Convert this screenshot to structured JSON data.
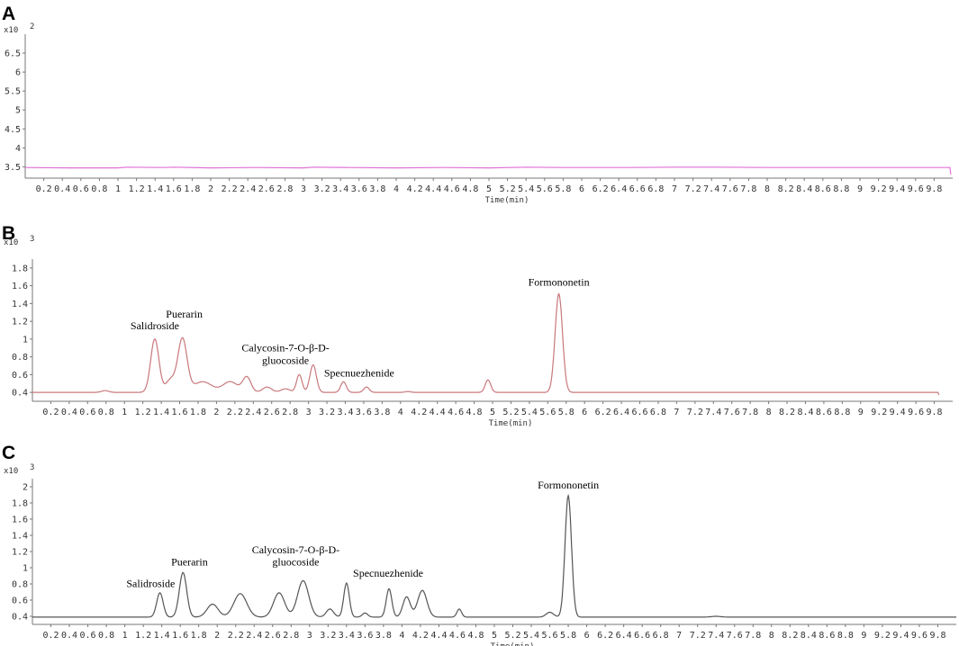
{
  "figure": {
    "panels": [
      "A",
      "B",
      "C"
    ]
  },
  "chart_data": [
    {
      "type": "line",
      "panel": "A",
      "scale_label": "x10",
      "scale_exponent": "2",
      "xlabel": "Time(min)",
      "ylabel": "",
      "xlim": [
        0,
        10
      ],
      "ylim": [
        3.2,
        7.0
      ],
      "yticks": [
        3.5,
        4,
        4.5,
        5,
        5.5,
        6,
        6.5
      ],
      "ytick_labels": [
        "3.5",
        "4",
        "4.5",
        "5",
        "5.5",
        "6",
        "6.5"
      ],
      "color": "#e070d8",
      "series": [
        {
          "x": [
            0.0,
            0.5,
            1.0,
            1.1,
            1.5,
            1.6,
            2.0,
            2.5,
            3.0,
            3.1,
            3.5,
            4.0,
            4.5,
            5.0,
            5.4,
            5.8,
            6.5,
            7.0,
            7.5,
            8.0,
            8.5,
            9.0,
            9.5,
            9.97,
            9.98
          ],
          "y": [
            3.48,
            3.47,
            3.47,
            3.49,
            3.48,
            3.49,
            3.47,
            3.48,
            3.47,
            3.49,
            3.48,
            3.47,
            3.48,
            3.47,
            3.49,
            3.48,
            3.48,
            3.49,
            3.49,
            3.48,
            3.48,
            3.48,
            3.48,
            3.48,
            3.3
          ]
        }
      ],
      "annotations": []
    },
    {
      "type": "line",
      "panel": "B",
      "scale_label": "x10",
      "scale_exponent": "3",
      "xlabel": "Time(min)",
      "ylabel": "",
      "xlim": [
        0,
        10
      ],
      "ylim": [
        0.3,
        1.9
      ],
      "yticks": [
        0.4,
        0.6,
        0.8,
        1.0,
        1.2,
        1.4,
        1.6,
        1.8
      ],
      "ytick_labels": [
        "0.4",
        "0.6",
        "0.8",
        "1",
        "1.2",
        "1.4",
        "1.6",
        "1.8"
      ],
      "color": "#c9787c",
      "baseline": 0.4,
      "peaks": [
        {
          "t": 0.79,
          "h": 0.02,
          "w": 0.04
        },
        {
          "t": 1.33,
          "h": 0.6,
          "w": 0.045
        },
        {
          "t": 1.5,
          "h": 0.14,
          "w": 0.05
        },
        {
          "t": 1.63,
          "h": 0.6,
          "w": 0.05
        },
        {
          "t": 1.85,
          "h": 0.12,
          "w": 0.1
        },
        {
          "t": 2.15,
          "h": 0.12,
          "w": 0.08
        },
        {
          "t": 2.33,
          "h": 0.17,
          "w": 0.045
        },
        {
          "t": 2.55,
          "h": 0.06,
          "w": 0.05
        },
        {
          "t": 2.75,
          "h": 0.04,
          "w": 0.05
        },
        {
          "t": 2.9,
          "h": 0.2,
          "w": 0.03
        },
        {
          "t": 3.05,
          "h": 0.31,
          "w": 0.035
        },
        {
          "t": 3.38,
          "h": 0.12,
          "w": 0.03
        },
        {
          "t": 3.63,
          "h": 0.06,
          "w": 0.03
        },
        {
          "t": 4.08,
          "h": 0.01,
          "w": 0.03
        },
        {
          "t": 4.95,
          "h": 0.14,
          "w": 0.03
        },
        {
          "t": 5.72,
          "h": 1.11,
          "w": 0.04
        }
      ],
      "end_dip": {
        "t": 9.84,
        "y": 0.37
      },
      "annotations": [
        {
          "text": "Salidroside",
          "x": 1.33,
          "y": 1.11
        },
        {
          "text": "Puerarin",
          "x": 1.65,
          "y": 1.24
        },
        {
          "text": "Calycosin-7-O-β-D-",
          "x": 2.75,
          "y": 0.86
        },
        {
          "text": "gluocoside",
          "x": 2.75,
          "y": 0.72
        },
        {
          "text": "Specnuezhenide",
          "x": 3.55,
          "y": 0.58
        },
        {
          "text": "Formononetin",
          "x": 5.72,
          "y": 1.6
        }
      ]
    },
    {
      "type": "line",
      "panel": "C",
      "scale_label": "x10",
      "scale_exponent": "3",
      "xlabel": "Time(min)",
      "ylabel": "",
      "xlim": [
        0,
        10
      ],
      "ylim": [
        0.3,
        2.1
      ],
      "yticks": [
        0.4,
        0.6,
        0.8,
        1.0,
        1.2,
        1.4,
        1.6,
        1.8,
        2.0
      ],
      "ytick_labels": [
        "0.4",
        "0.6",
        "0.8",
        "1",
        "1.2",
        "1.4",
        "1.6",
        "1.8",
        "2"
      ],
      "color": "#555555",
      "baseline": 0.39,
      "peaks": [
        {
          "t": 1.38,
          "h": 0.3,
          "w": 0.035
        },
        {
          "t": 1.63,
          "h": 0.55,
          "w": 0.04
        },
        {
          "t": 1.95,
          "h": 0.16,
          "w": 0.06
        },
        {
          "t": 2.25,
          "h": 0.29,
          "w": 0.07
        },
        {
          "t": 2.67,
          "h": 0.3,
          "w": 0.06
        },
        {
          "t": 2.93,
          "h": 0.45,
          "w": 0.06
        },
        {
          "t": 3.22,
          "h": 0.1,
          "w": 0.04
        },
        {
          "t": 3.4,
          "h": 0.42,
          "w": 0.03
        },
        {
          "t": 3.6,
          "h": 0.05,
          "w": 0.03
        },
        {
          "t": 3.86,
          "h": 0.35,
          "w": 0.03
        },
        {
          "t": 4.05,
          "h": 0.25,
          "w": 0.04
        },
        {
          "t": 4.22,
          "h": 0.33,
          "w": 0.05
        },
        {
          "t": 4.62,
          "h": 0.1,
          "w": 0.025
        },
        {
          "t": 5.6,
          "h": 0.06,
          "w": 0.04
        },
        {
          "t": 5.8,
          "h": 1.5,
          "w": 0.035
        },
        {
          "t": 7.4,
          "h": 0.01,
          "w": 0.05
        }
      ],
      "end_dip": null,
      "annotations": [
        {
          "text": "Salidroside",
          "x": 1.28,
          "y": 0.76
        },
        {
          "text": "Puerarin",
          "x": 1.7,
          "y": 1.03
        },
        {
          "text": "Calycosin-7-O-β-D-",
          "x": 2.85,
          "y": 1.18
        },
        {
          "text": "gluocoside",
          "x": 2.85,
          "y": 1.03
        },
        {
          "text": "Specnuezhenide",
          "x": 3.85,
          "y": 0.89
        },
        {
          "text": "Formononetin",
          "x": 5.8,
          "y": 1.98
        }
      ]
    }
  ]
}
